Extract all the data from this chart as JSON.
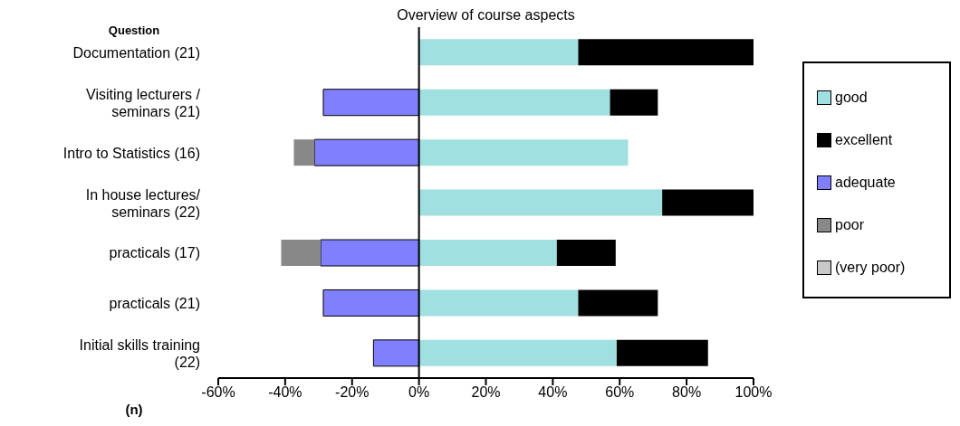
{
  "chart_data": {
    "type": "bar",
    "orientation": "horizontal",
    "stacked": true,
    "title": "Overview of course aspects",
    "ylabel": "Question",
    "annotations": [
      "(n)"
    ],
    "categories": [
      "Documentation (21)",
      "Visiting lecturers / seminars (21)",
      "Intro to Statistics (16)",
      "In house lectures/ seminars (22)",
      "practicals (17)",
      "practicals (21)",
      "Initial skills training (22)"
    ],
    "series": [
      {
        "name": "good",
        "color": "#a0e0e0",
        "values": [
          47.6,
          57.1,
          62.5,
          72.7,
          41.2,
          47.6,
          59.1
        ]
      },
      {
        "name": "excellent",
        "color": "#000000",
        "values": [
          52.4,
          14.3,
          null,
          27.3,
          17.6,
          23.8,
          27.3
        ]
      },
      {
        "name": "adequate",
        "color": "#8080ff",
        "values": [
          null,
          -28.6,
          -31.2,
          null,
          -29.4,
          -28.6,
          -13.6
        ]
      },
      {
        "name": "poor",
        "color": "#888888",
        "values": [
          null,
          null,
          -6.2,
          null,
          -11.8,
          null,
          null
        ]
      },
      {
        "name": "(very poor)",
        "color": "#c8c8c8",
        "values": [
          null,
          null,
          null,
          null,
          null,
          null,
          null
        ]
      }
    ],
    "xlim": [
      -60,
      100
    ],
    "xticks": [
      {
        "value": -60,
        "label": "-60%"
      },
      {
        "value": -40,
        "label": "-40%"
      },
      {
        "value": -20,
        "label": "-20%"
      },
      {
        "value": 0,
        "label": "0%"
      },
      {
        "value": 20,
        "label": "20%"
      },
      {
        "value": 40,
        "label": "40%"
      },
      {
        "value": 60,
        "label": "60%"
      },
      {
        "value": 80,
        "label": "80%"
      },
      {
        "value": 100,
        "label": "100%"
      }
    ],
    "ref_lines": [
      {
        "axis": "x",
        "value": 0,
        "color": "#000000"
      }
    ],
    "legend": "right"
  }
}
